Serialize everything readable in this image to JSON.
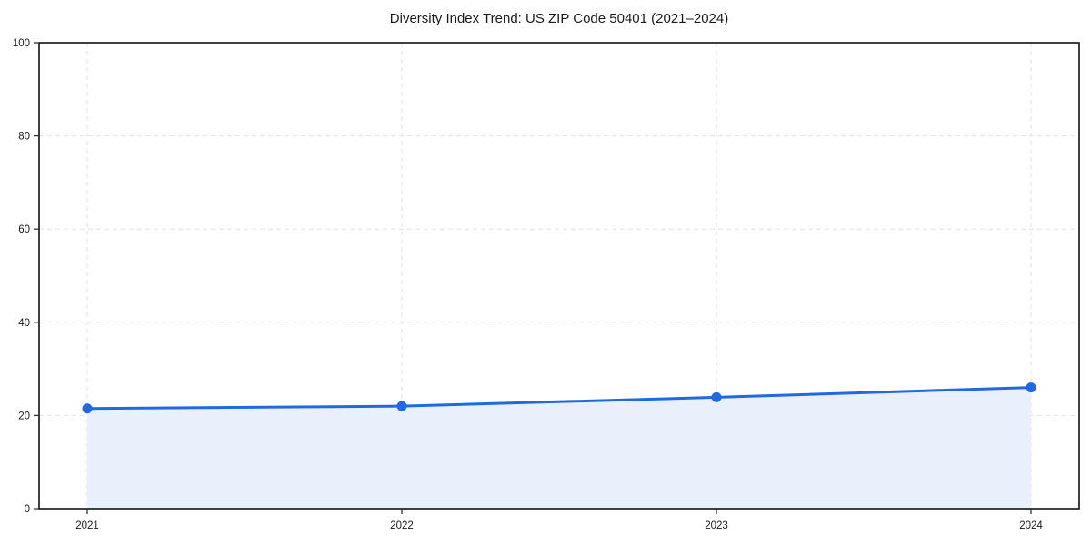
{
  "page": {
    "title": "Diversity Index Trend: US ZIP Code 50401 (2021–2024)"
  },
  "chart_data": {
    "type": "area",
    "title": "Diversity Index Trend: US ZIP Code 50401 (2021–2024)",
    "categories": [
      "2021",
      "2022",
      "2023",
      "2024"
    ],
    "values": [
      21.5,
      22.0,
      23.9,
      26.0
    ],
    "series": [
      {
        "name": "Diversity Index",
        "values": [
          21.5,
          22.0,
          23.9,
          26.0
        ]
      }
    ],
    "xlabel": "",
    "ylabel": "",
    "ylim": [
      0,
      100
    ],
    "y_ticks": [
      0,
      20,
      40,
      60,
      80,
      100
    ],
    "grid": true,
    "grid_style": "dashed",
    "legend": "none",
    "marker": "circle",
    "colors": {
      "line": "#2069e0",
      "marker": "#2069e0",
      "fill": "#e9f0fc",
      "grid": "#e2e2e2",
      "spine": "#111111",
      "tick": "#333333",
      "text": "#1a1a1a",
      "background": "#ffffff"
    }
  }
}
